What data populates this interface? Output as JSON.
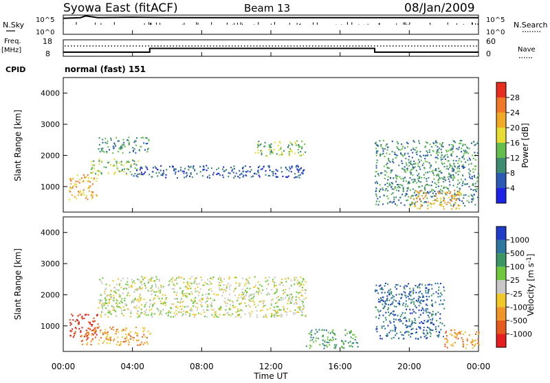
{
  "header": {
    "station": "Syowa East (fitACF)",
    "beam": "Beam 13",
    "date": "08/Jan/2009"
  },
  "panels": {
    "nsky": {
      "label": "N.Sky",
      "tick_top": "10^5",
      "tick_bottom": "10^0"
    },
    "nsearch": {
      "label": "N.Search",
      "tick_top": "10^5",
      "tick_bottom": "10^0"
    },
    "freq": {
      "label_top": "Freq.",
      "label_bottom": "[MHz]",
      "tick_top": "18",
      "tick_bottom": "8"
    },
    "nave": {
      "label": "Nave",
      "tick_top": "60",
      "tick_bottom": "0"
    },
    "cpid": {
      "label": "CPID",
      "value": "normal (fast) 151"
    }
  },
  "time_axis": {
    "ticks": [
      "00:00",
      "04:00",
      "08:00",
      "12:00",
      "16:00",
      "20:00",
      "00:00"
    ],
    "label": "Time UT"
  },
  "range_axis": {
    "label": "Slant Range [km]",
    "ticks": [
      "1000",
      "2000",
      "3000",
      "4000"
    ]
  },
  "colorbars": {
    "power": {
      "label": "Power [dB]",
      "ticks": [
        "4",
        "8",
        "12",
        "16",
        "20",
        "24",
        "28"
      ],
      "colors": [
        "#1e22e6",
        "#2a5ab4",
        "#3c8c72",
        "#64be4b",
        "#e6dc32",
        "#f0aa28",
        "#f07828",
        "#e62d1e"
      ]
    },
    "velocity": {
      "label": "Velocity [m s^-1]",
      "ticks": [
        "1000",
        "500",
        "100",
        "25",
        "-25",
        "-100",
        "-500",
        "-1000"
      ],
      "colors": [
        "#1e3cc8",
        "#2d78a0",
        "#3c9664",
        "#6ec83c",
        "#c8c8c8",
        "#f0c828",
        "#f09628",
        "#e65a1e",
        "#e61e1e"
      ]
    }
  },
  "chart_data": [
    {
      "type": "line",
      "name": "N.Sky / N.Search",
      "x": [
        0,
        1,
        1.3,
        2,
        4,
        6,
        8,
        10,
        12,
        14,
        16,
        18,
        20,
        22,
        24
      ],
      "values": [
        20000,
        30000,
        90000,
        30000,
        40000,
        30000,
        30000,
        30000,
        30000,
        30000,
        30000,
        30000,
        30000,
        30000,
        30000
      ],
      "xlim": [
        0,
        24
      ]
    },
    {
      "type": "line",
      "x": [
        0,
        5,
        5,
        18,
        18,
        24
      ],
      "values": [
        10.5,
        10.5,
        12.8,
        12.8,
        10.5,
        10.5
      ],
      "ylim": [
        8,
        18
      ],
      "xlim": [
        0,
        24
      ]
    },
    {
      "type": "heatmap",
      "name": "Power",
      "xlim": [
        0,
        24
      ],
      "ylim": [
        180,
        4500
      ],
      "xlabel": "Time UT",
      "ylabel": "Slant Range [km]",
      "regions": [
        {
          "t": [
            0.3,
            2.0
          ],
          "r": [
            600,
            1400
          ],
          "level": 5
        },
        {
          "t": [
            1.5,
            4.5
          ],
          "r": [
            1400,
            1900
          ],
          "level": 3
        },
        {
          "t": [
            2.0,
            5.0
          ],
          "r": [
            2100,
            2600
          ],
          "level": 2
        },
        {
          "t": [
            4.0,
            14.0
          ],
          "r": [
            1300,
            1700
          ],
          "level": 1
        },
        {
          "t": [
            11.0,
            14.0
          ],
          "r": [
            2000,
            2500
          ],
          "level": 3
        },
        {
          "t": [
            18.0,
            24.0
          ],
          "r": [
            400,
            2500
          ],
          "level": 2
        },
        {
          "t": [
            20.0,
            23.0
          ],
          "r": [
            300,
            900
          ],
          "level": 5
        }
      ]
    },
    {
      "type": "heatmap",
      "name": "Velocity",
      "xlim": [
        0,
        24
      ],
      "ylim": [
        180,
        4500
      ],
      "xlabel": "Time UT",
      "ylabel": "Slant Range [km]",
      "regions": [
        {
          "t": [
            0.3,
            2.0
          ],
          "r": [
            600,
            1400
          ],
          "level": 8
        },
        {
          "t": [
            1.0,
            5.0
          ],
          "r": [
            400,
            1000
          ],
          "level": 6
        },
        {
          "t": [
            2.0,
            14.0
          ],
          "r": [
            1300,
            2600
          ],
          "level": 4
        },
        {
          "t": [
            14.0,
            17.0
          ],
          "r": [
            300,
            900
          ],
          "level": 2
        },
        {
          "t": [
            18.0,
            22.0
          ],
          "r": [
            600,
            2400
          ],
          "level": 1
        },
        {
          "t": [
            22.0,
            24.0
          ],
          "r": [
            300,
            900
          ],
          "level": 6
        }
      ]
    }
  ]
}
